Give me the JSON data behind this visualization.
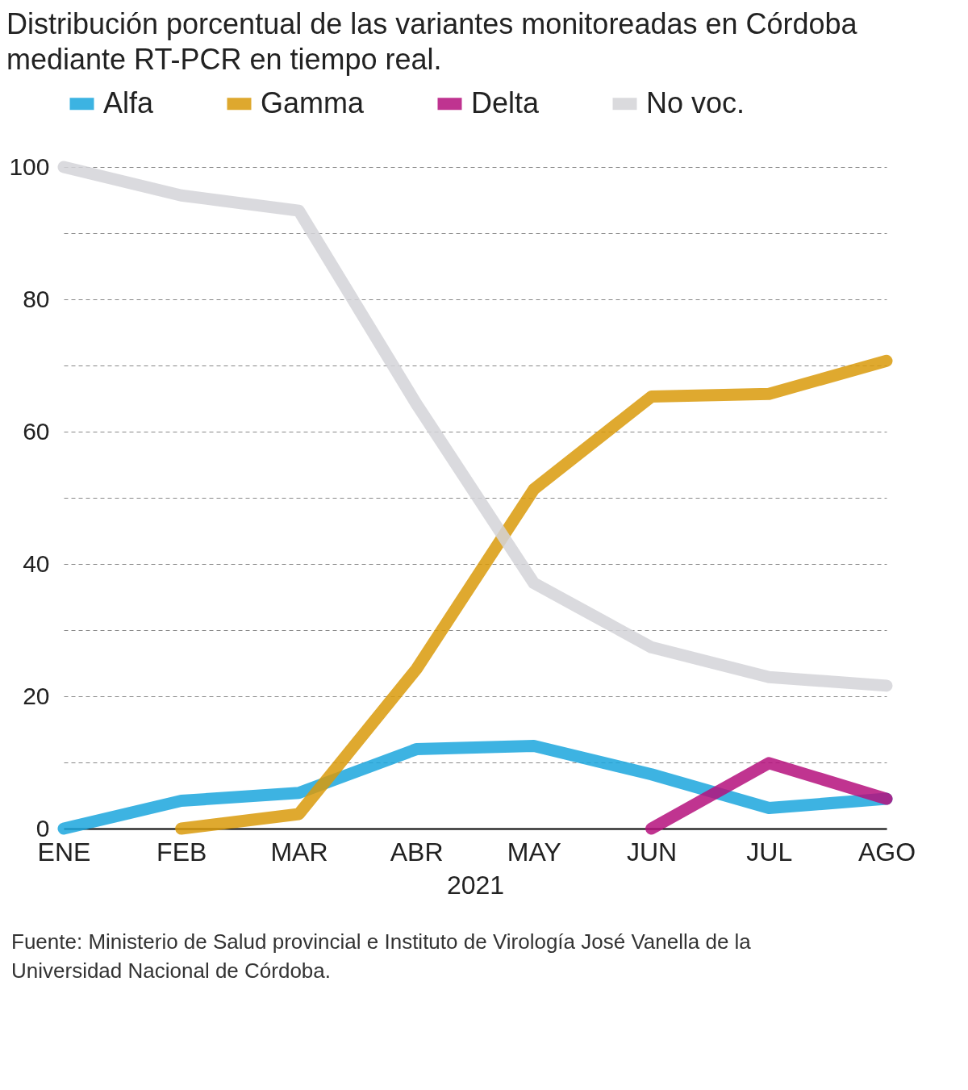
{
  "chart_data": {
    "type": "line",
    "title": "Distribución porcentual de las variantes monitoreadas en Córdoba mediante RT-PCR en tiempo real.",
    "xlabel": "2021",
    "categories": [
      "ENE",
      "FEB",
      "MAR",
      "ABR",
      "MAY",
      "JUN",
      "JUL",
      "AGO"
    ],
    "series": [
      {
        "name": "Alfa",
        "color": "#1ba6dd",
        "values": [
          0,
          4.2,
          5.4,
          12.0,
          12.5,
          8.2,
          3.1,
          4.5
        ]
      },
      {
        "name": "Gamma",
        "color": "#d99a0a",
        "values": [
          null,
          0,
          2.2,
          24.1,
          51.3,
          65.3,
          65.7,
          70.7
        ]
      },
      {
        "name": "Delta",
        "color": "#b5107d",
        "values": [
          null,
          null,
          null,
          null,
          null,
          0,
          9.9,
          4.5
        ]
      },
      {
        "name": "No voc.",
        "color": "#d4d4d8",
        "values": [
          100,
          95.7,
          93.4,
          64.2,
          37.1,
          27.4,
          22.9,
          21.6
        ]
      }
    ],
    "ylim": [
      0,
      100
    ],
    "yticks": [
      0,
      {
        "value": 10,
        "label": null
      },
      20,
      {
        "value": 30,
        "label": null
      },
      40,
      {
        "value": 50,
        "label": null
      },
      60,
      {
        "value": 70,
        "label": null
      },
      80,
      {
        "value": 90,
        "label": null
      },
      100
    ],
    "grid": "y",
    "legend": "top left",
    "marker": "none",
    "line_style": "solid",
    "annotations": [
      "Fuente: Ministerio de Salud provincial e Instituto de Virología José Vanella de la Universidad Nacional de Córdoba."
    ]
  }
}
